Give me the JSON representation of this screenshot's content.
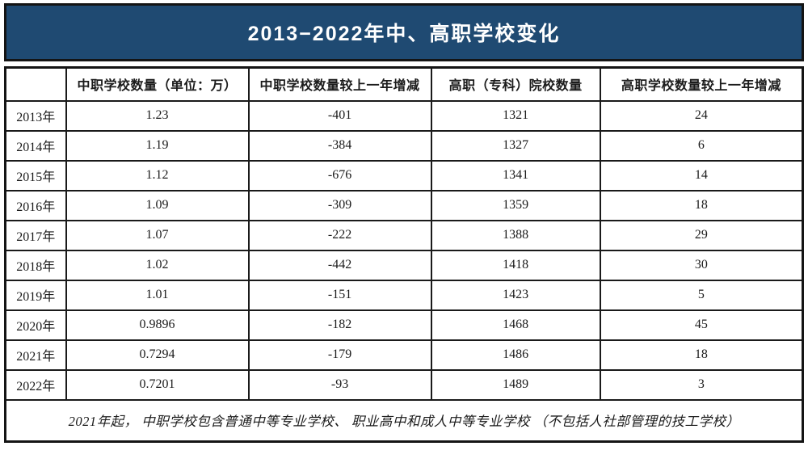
{
  "banner": {
    "title": "2013−2022年中、高职学校变化",
    "bg_color": "#1f4a72",
    "text_color": "#ffffff",
    "border_color": "#141414"
  },
  "chart_data": {
    "type": "table",
    "title": "2013−2022年中、高职学校变化",
    "columns": [
      "",
      "中职学校数量（单位：万）",
      "中职学校数量较上一年增减",
      "高职（专科）院校数量",
      "高职学校数量较上一年增减"
    ],
    "rows": [
      [
        "2013年",
        "1.23",
        "-401",
        "1321",
        "24"
      ],
      [
        "2014年",
        "1.19",
        "-384",
        "1327",
        "6"
      ],
      [
        "2015年",
        "1.12",
        "-676",
        "1341",
        "14"
      ],
      [
        "2016年",
        "1.09",
        "-309",
        "1359",
        "18"
      ],
      [
        "2017年",
        "1.07",
        "-222",
        "1388",
        "29"
      ],
      [
        "2018年",
        "1.02",
        "-442",
        "1418",
        "30"
      ],
      [
        "2019年",
        "1.01",
        "-151",
        "1423",
        "5"
      ],
      [
        "2020年",
        "0.9896",
        "-182",
        "1468",
        "45"
      ],
      [
        "2021年",
        "0.7294",
        "-179",
        "1486",
        "18"
      ],
      [
        "2022年",
        "0.7201",
        "-93",
        "1489",
        "3"
      ]
    ],
    "footnote": "2021年起， 中职学校包含普通中等专业学校、 职业高中和成人中等专业学校 （不包括人社部管理的技工学校）"
  }
}
